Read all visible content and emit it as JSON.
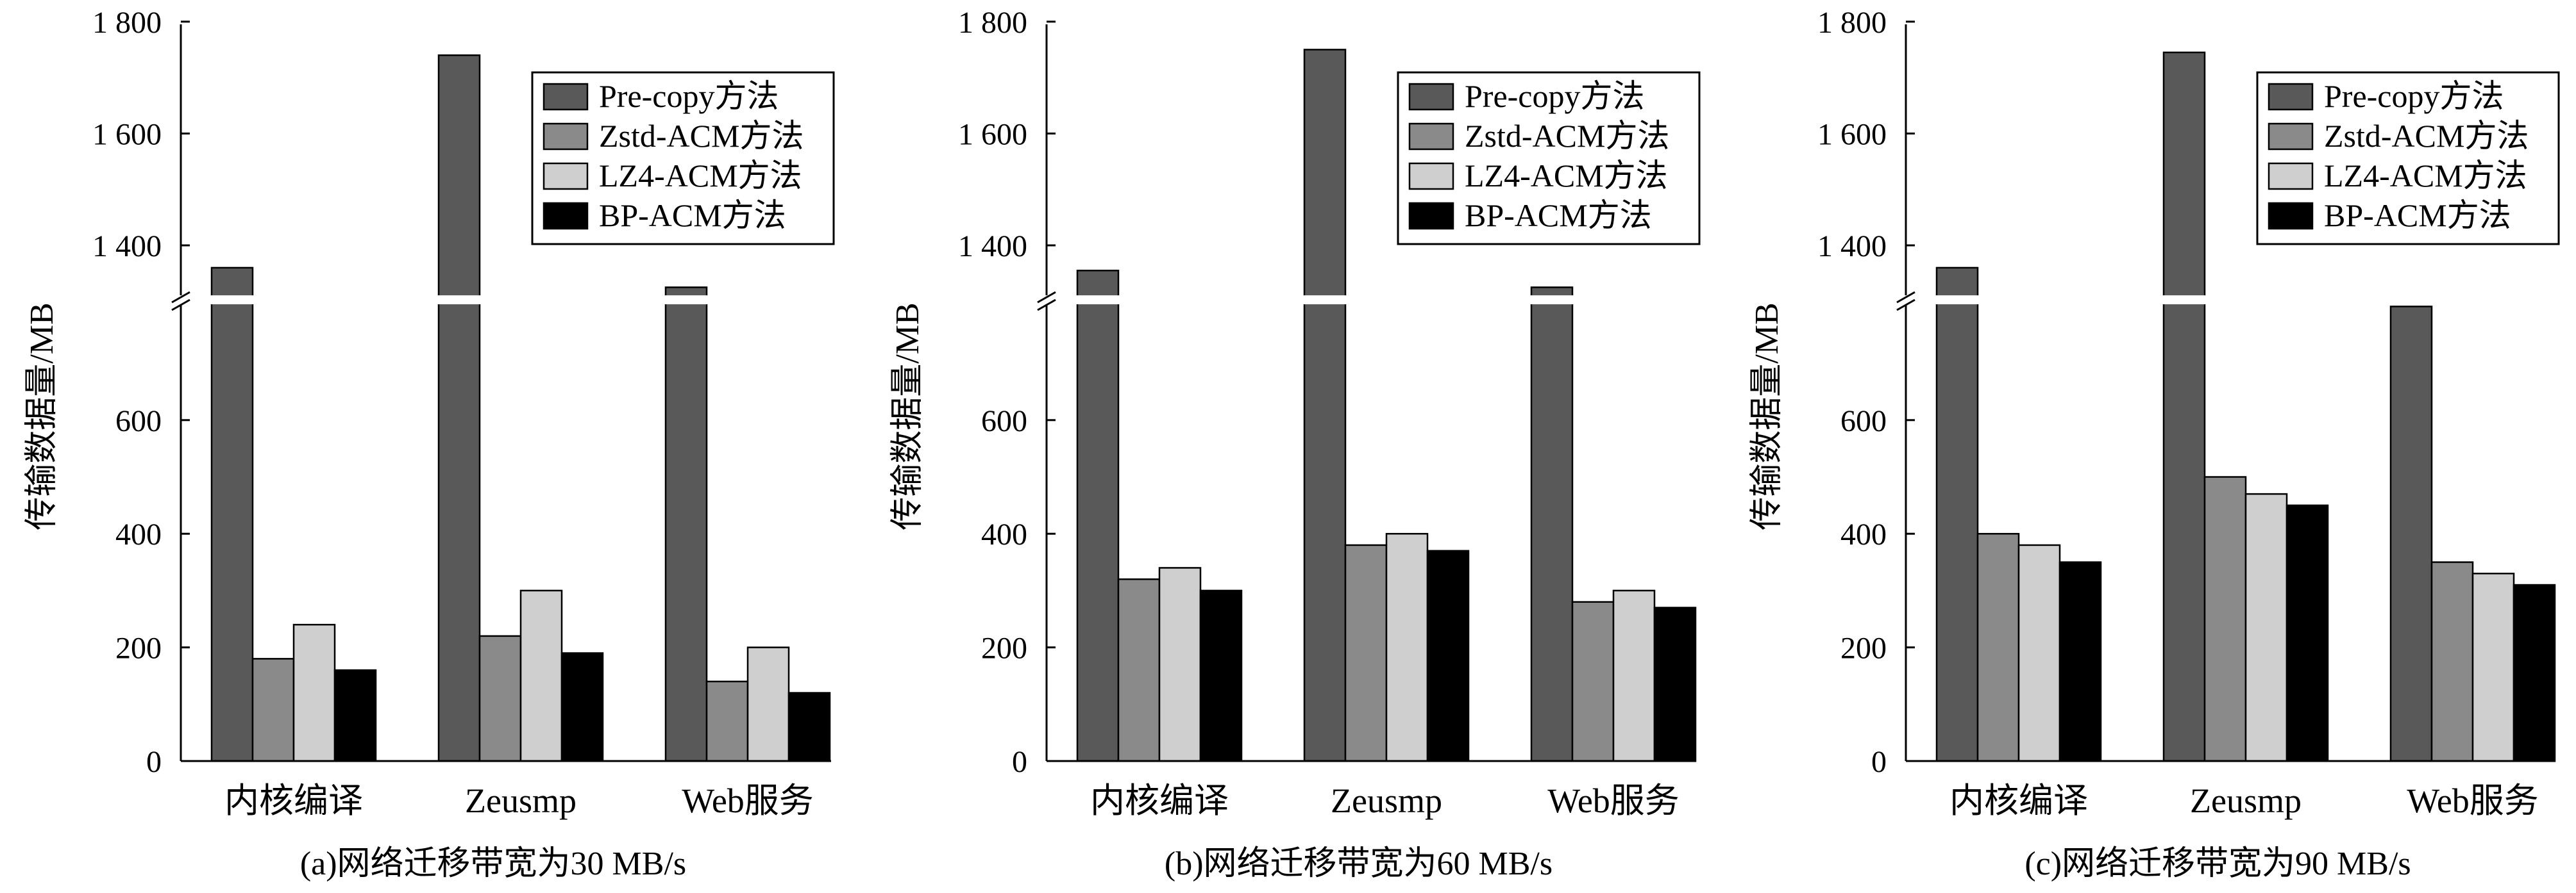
{
  "y_axis_label": "传输数据量/MB",
  "legend": [
    {
      "name": "Pre-copy方法",
      "color": "#595959"
    },
    {
      "name": "Zstd-ACM方法",
      "color": "#8a8a8a"
    },
    {
      "name": "LZ4-ACM方法",
      "color": "#cfcfcf"
    },
    {
      "name": "BP-ACM方法",
      "color": "#000000"
    }
  ],
  "chart_data": [
    {
      "type": "bar",
      "title": "(a)网络迁移带宽为30 MB/s",
      "ylabel": "传输数据量/MB",
      "categories": [
        "内核编译",
        "Zeusmp",
        "Web服务"
      ],
      "y_ticks_lower": [
        "0",
        "200",
        "400",
        "600"
      ],
      "y_ticks_upper": [
        "1 400",
        "1 600",
        "1 800"
      ],
      "axis_break": [
        800,
        1310
      ],
      "ylim": [
        0,
        1800
      ],
      "legend_position": "top-right",
      "series": [
        {
          "name": "Pre-copy方法",
          "values": [
            1360,
            1740,
            1325
          ]
        },
        {
          "name": "Zstd-ACM方法",
          "values": [
            180,
            220,
            140
          ]
        },
        {
          "name": "LZ4-ACM方法",
          "values": [
            240,
            300,
            200
          ]
        },
        {
          "name": "BP-ACM方法",
          "values": [
            160,
            190,
            120
          ]
        }
      ]
    },
    {
      "type": "bar",
      "title": "(b)网络迁移带宽为60 MB/s",
      "ylabel": "传输数据量/MB",
      "categories": [
        "内核编译",
        "Zeusmp",
        "Web服务"
      ],
      "y_ticks_lower": [
        "0",
        "200",
        "400",
        "600"
      ],
      "y_ticks_upper": [
        "1 400",
        "1 600",
        "1 800"
      ],
      "axis_break": [
        800,
        1310
      ],
      "ylim": [
        0,
        1800
      ],
      "legend_position": "top-right",
      "series": [
        {
          "name": "Pre-copy方法",
          "values": [
            1355,
            1750,
            1325
          ]
        },
        {
          "name": "Zstd-ACM方法",
          "values": [
            320,
            380,
            280
          ]
        },
        {
          "name": "LZ4-ACM方法",
          "values": [
            340,
            400,
            300
          ]
        },
        {
          "name": "BP-ACM方法",
          "values": [
            300,
            370,
            270
          ]
        }
      ]
    },
    {
      "type": "bar",
      "title": "(c)网络迁移带宽为90 MB/s",
      "ylabel": "传输数据量/MB",
      "categories": [
        "内核编译",
        "Zeusmp",
        "Web服务"
      ],
      "y_ticks_lower": [
        "0",
        "200",
        "400",
        "600"
      ],
      "y_ticks_upper": [
        "1 400",
        "1 600",
        "1 800"
      ],
      "axis_break": [
        800,
        1310
      ],
      "ylim": [
        0,
        1800
      ],
      "legend_position": "top-right",
      "series": [
        {
          "name": "Pre-copy方法",
          "values": [
            1360,
            1745,
            800
          ]
        },
        {
          "name": "Zstd-ACM方法",
          "values": [
            400,
            500,
            350
          ]
        },
        {
          "name": "LZ4-ACM方法",
          "values": [
            380,
            470,
            330
          ]
        },
        {
          "name": "BP-ACM方法",
          "values": [
            350,
            450,
            310
          ]
        }
      ]
    }
  ]
}
